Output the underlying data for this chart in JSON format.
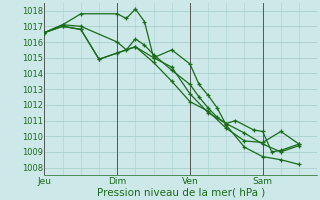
{
  "xlabel": "Pression niveau de la mer( hPa )",
  "bg_color": "#cce8e8",
  "grid_color": "#aad0d0",
  "line_color": "#1a6b1a",
  "vline_color": "#555555",
  "ylim": [
    1007.5,
    1018.5
  ],
  "yticks": [
    1008,
    1009,
    1010,
    1011,
    1012,
    1013,
    1014,
    1015,
    1016,
    1017,
    1018
  ],
  "xtick_labels": [
    "Jeu",
    "Dim",
    "Ven",
    "Sam"
  ],
  "series": [
    {
      "x": [
        0.0,
        0.5,
        1.0,
        2.0,
        2.25,
        2.5,
        2.75,
        3.0,
        3.5,
        4.0,
        4.25,
        4.5,
        4.75,
        5.0,
        5.5,
        6.0,
        6.5,
        7.0
      ],
      "y": [
        1016.6,
        1017.1,
        1017.0,
        1016.0,
        1015.5,
        1016.2,
        1015.8,
        1015.2,
        1014.2,
        1013.3,
        1012.5,
        1011.8,
        1011.2,
        1010.8,
        1010.2,
        1009.5,
        1009.0,
        1009.4
      ]
    },
    {
      "x": [
        0.0,
        0.5,
        1.0,
        2.0,
        2.25,
        2.5,
        2.75,
        3.0,
        3.5,
        4.0,
        4.25,
        4.5,
        4.75,
        5.0,
        5.5,
        6.0,
        6.5,
        7.0
      ],
      "y": [
        1016.6,
        1017.1,
        1017.8,
        1017.8,
        1017.5,
        1018.1,
        1017.3,
        1015.0,
        1015.5,
        1014.6,
        1013.3,
        1012.6,
        1011.8,
        1010.7,
        1009.3,
        1008.7,
        1008.5,
        1008.2
      ]
    },
    {
      "x": [
        0.0,
        0.5,
        1.0,
        1.5,
        2.0,
        2.5,
        3.0,
        3.5,
        4.0,
        4.5,
        5.0,
        5.5,
        6.0,
        6.5,
        7.0
      ],
      "y": [
        1016.6,
        1017.0,
        1016.8,
        1014.9,
        1015.3,
        1015.7,
        1014.7,
        1013.5,
        1012.2,
        1011.6,
        1010.5,
        1009.7,
        1009.6,
        1010.3,
        1009.5
      ]
    },
    {
      "x": [
        0.0,
        0.5,
        1.0,
        1.5,
        2.0,
        2.5,
        3.0,
        3.5,
        4.0,
        4.5,
        5.0,
        5.25,
        5.75,
        6.0,
        6.25,
        6.5,
        7.0
      ],
      "y": [
        1016.6,
        1017.0,
        1016.8,
        1014.9,
        1015.3,
        1015.7,
        1015.0,
        1014.4,
        1012.7,
        1011.5,
        1010.8,
        1011.0,
        1010.4,
        1010.3,
        1009.0,
        1009.1,
        1009.5
      ]
    }
  ],
  "xtick_x": [
    0.0,
    2.0,
    4.0,
    6.0
  ],
  "xlim": [
    0.0,
    7.5
  ]
}
